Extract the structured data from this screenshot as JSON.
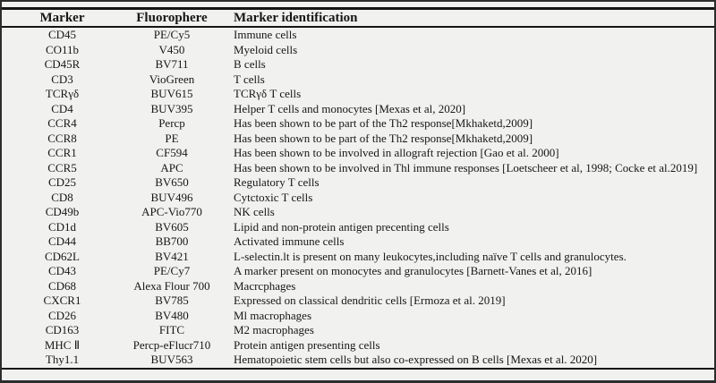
{
  "colors": {
    "background": "#f1f1ef",
    "frame_border": "#2d2d2d",
    "rule": "#151515",
    "text": "#171717"
  },
  "table": {
    "columns": [
      "Marker",
      "Fluorophere",
      "Marker identification"
    ],
    "rows": [
      [
        "CD45",
        "PE/Cy5",
        "Immune cells"
      ],
      [
        "CO11b",
        "V450",
        "Myeloid cells"
      ],
      [
        "CD45R",
        "BV711",
        "B cells"
      ],
      [
        "CD3",
        "VioGreen",
        "T cells"
      ],
      [
        "TCRγδ",
        "BUV615",
        "TCRγδ T cells"
      ],
      [
        "CD4",
        "BUV395",
        "Helper T cells and monocytes [Mexas et al, 2020]"
      ],
      [
        "CCR4",
        "Percp",
        "Has been shown to be part of the Th2 response[Mkhaketd,2009]"
      ],
      [
        "CCR8",
        "PE",
        "Has been shown to be part of the Th2 response[Mkhaketd,2009]"
      ],
      [
        "CCR1",
        "CF594",
        "Has been shown to be involved in allograft rejection [Gao et al. 2000]"
      ],
      [
        "CCR5",
        "APC",
        "Has been shown to be involved in Thl immune responses [Loetscheer et al, 1998; Cocke et al.2019]"
      ],
      [
        "CD25",
        "BV650",
        "Regulatory T cells"
      ],
      [
        "CD8",
        "BUV496",
        "Cytctoxic T cells"
      ],
      [
        "CD49b",
        "APC-Vio770",
        "NK cells"
      ],
      [
        "CD1d",
        "BV605",
        "Lipid and non-protein antigen precenting cells"
      ],
      [
        "CD44",
        "BB700",
        "Activated immune cells"
      ],
      [
        "CD62L",
        "BV421",
        "L-selectin.lt is present on many leukocytes,including naïve T cells and granulocytes."
      ],
      [
        "CD43",
        "PE/Cy7",
        "A marker present on monocytes and granulocytes [Barnett-Vanes et al, 2016]"
      ],
      [
        "CD68",
        "Alexa Flour 700",
        "Macrcphages"
      ],
      [
        "CXCR1",
        "BV785",
        "Expressed on classical dendritic cells [Ermoza et al. 2019]"
      ],
      [
        "CD26",
        "BV480",
        "Ml macrophages"
      ],
      [
        "CD163",
        "FITC",
        "M2 macrophages"
      ],
      [
        "MHC Ⅱ",
        "Percp-eFlucr710",
        "Protein antigen presenting cells"
      ],
      [
        "Thy1.1",
        "BUV563",
        "Hematopoietic stem cells but also co-expressed on B cells [Mexas et al. 2020]"
      ]
    ]
  }
}
